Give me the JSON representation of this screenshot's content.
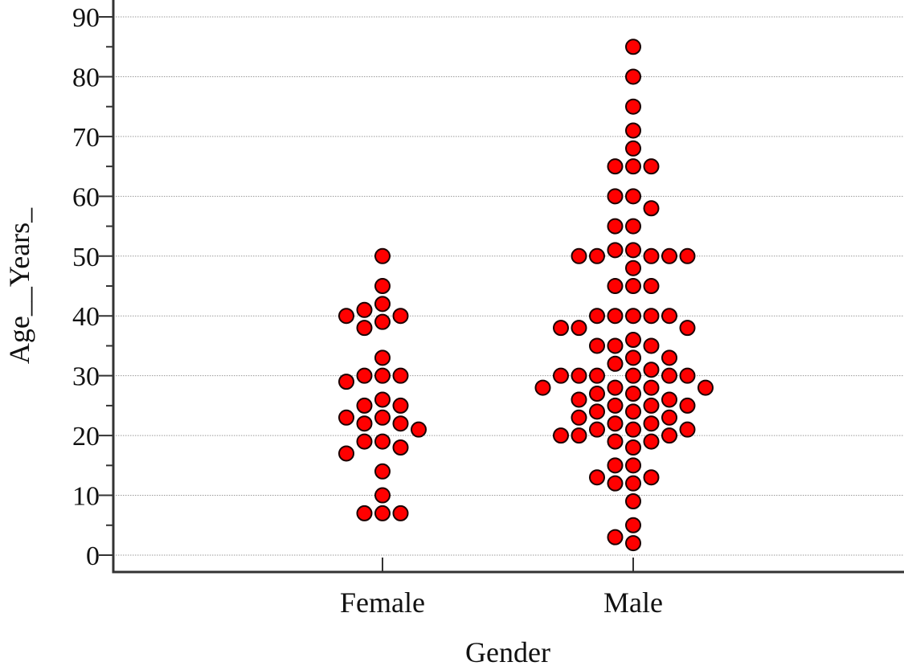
{
  "chart_data": {
    "type": "scatter",
    "xlabel": "Gender",
    "ylabel": "Age__Years_",
    "ylim": [
      -3,
      93
    ],
    "yticks": [
      0,
      10,
      20,
      30,
      40,
      50,
      60,
      70,
      80,
      90
    ],
    "grid": "horizontal",
    "categories": [
      "Female",
      "Male"
    ],
    "series": [
      {
        "category": "Female",
        "values": [
          50,
          45,
          42,
          41,
          40,
          40,
          39,
          38,
          33,
          30,
          30,
          30,
          29,
          26,
          25,
          25,
          23,
          23,
          22,
          22,
          21,
          19,
          19,
          18,
          17,
          14,
          10,
          7,
          7,
          7
        ]
      },
      {
        "category": "Male",
        "values": [
          85,
          80,
          75,
          71,
          68,
          65,
          65,
          65,
          60,
          60,
          58,
          55,
          55,
          51,
          51,
          50,
          50,
          50,
          50,
          50,
          48,
          45,
          45,
          45,
          40,
          40,
          40,
          40,
          40,
          38,
          38,
          38,
          36,
          35,
          35,
          35,
          33,
          33,
          32,
          31,
          30,
          30,
          30,
          30,
          30,
          30,
          28,
          28,
          28,
          28,
          27,
          27,
          26,
          26,
          25,
          25,
          25,
          24,
          24,
          23,
          23,
          22,
          22,
          21,
          21,
          21,
          20,
          20,
          20,
          19,
          19,
          18,
          15,
          15,
          13,
          13,
          12,
          12,
          9,
          5,
          3,
          2
        ]
      }
    ],
    "colors": {
      "marker_fill": "#ff0000",
      "marker_edge": "#1a0000"
    }
  }
}
